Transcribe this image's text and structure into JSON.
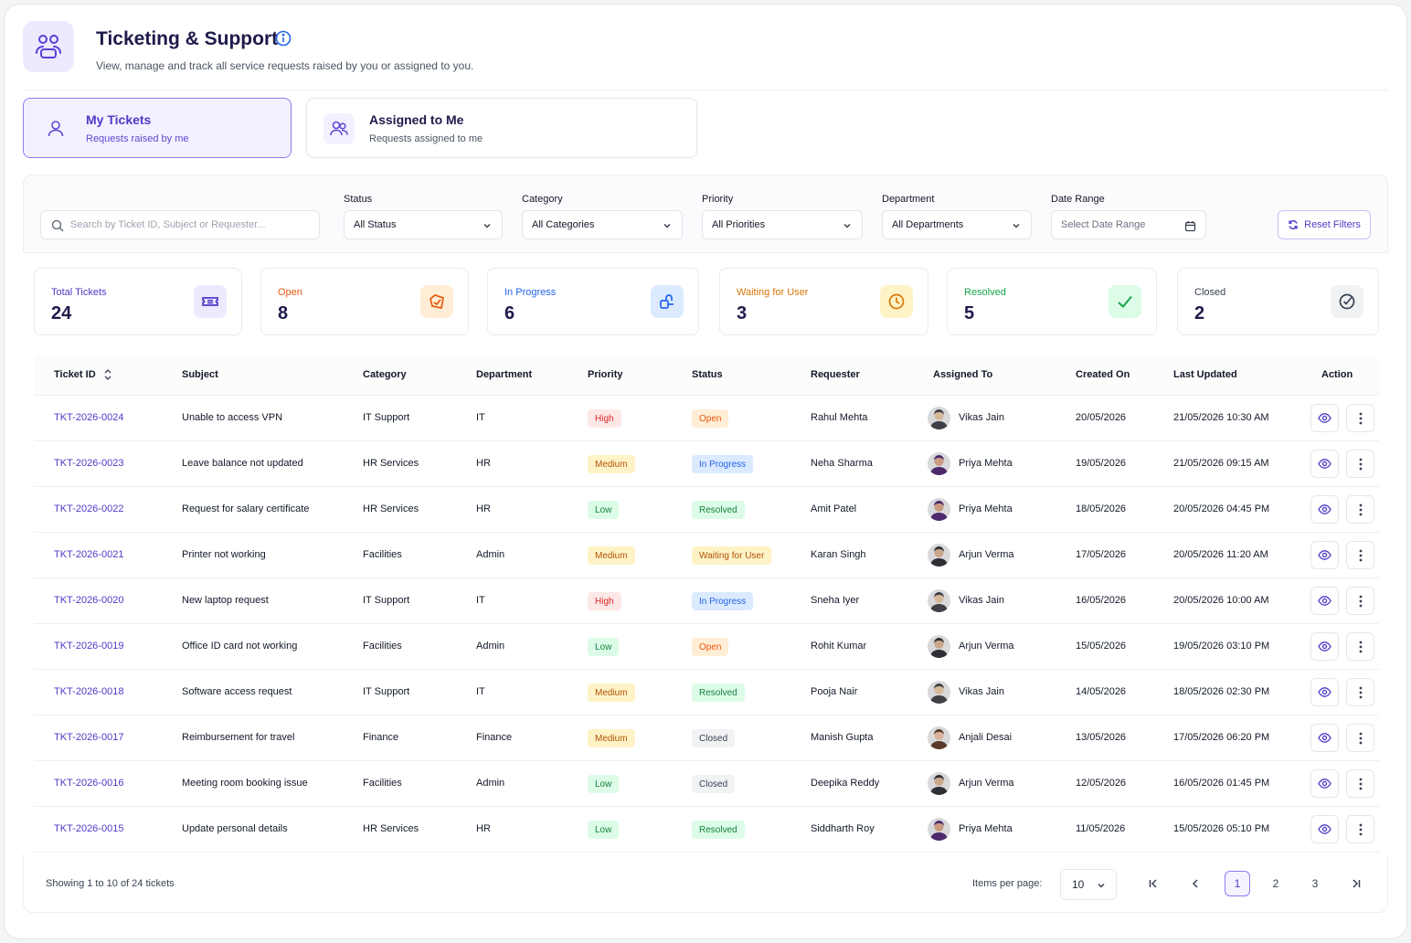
{
  "header": {
    "title": "Ticketing & Support",
    "subtitle": "View, manage and track all service requests raised by you or assigned to you."
  },
  "tabs": [
    {
      "title": "My Tickets",
      "subtitle": "Requests raised by me",
      "active": true
    },
    {
      "title": "Assigned to Me",
      "subtitle": "Requests assigned to me",
      "active": false
    }
  ],
  "filters": {
    "search_placeholder": "Search by Ticket ID, Subject or Requester...",
    "status": {
      "label": "Status",
      "value": "All Status"
    },
    "category": {
      "label": "Category",
      "value": "All Categories"
    },
    "priority": {
      "label": "Priority",
      "value": "All Priorities"
    },
    "department": {
      "label": "Department",
      "value": "All Departments"
    },
    "date_range": {
      "label": "Date Range",
      "placeholder": "Select Date Range"
    },
    "reset_label": "Reset Filters"
  },
  "stats": [
    {
      "label": "Total Tickets",
      "value": "24",
      "color": "#4c3bc7",
      "icon": "ticket-icon"
    },
    {
      "label": "Open",
      "value": "8",
      "color": "#ea580c",
      "icon": "open-ticket-icon"
    },
    {
      "label": "In Progress",
      "value": "6",
      "color": "#2563eb",
      "icon": "in-progress-icon"
    },
    {
      "label": "Waiting for User",
      "value": "3",
      "color": "#d97706",
      "icon": "clock-icon"
    },
    {
      "label": "Resolved",
      "value": "5",
      "color": "#16a34a",
      "icon": "check-icon"
    },
    {
      "label": "Closed",
      "value": "2",
      "color": "#374151",
      "icon": "check-circle-icon"
    }
  ],
  "table": {
    "columns": [
      "Ticket ID",
      "Subject",
      "Category",
      "Department",
      "Priority",
      "Status",
      "Requester",
      "Assigned To",
      "Created On",
      "Last Updated",
      "Action"
    ],
    "rows": [
      {
        "id": "TKT-2026-0024",
        "subject": "Unable to access VPN",
        "category": "IT Support",
        "department": "IT",
        "priority": "High",
        "status": "Open",
        "requester": "Rahul Mehta",
        "assignee": "Vikas Jain",
        "created": "20/05/2026",
        "updated": "21/05/2026 10:30 AM"
      },
      {
        "id": "TKT-2026-0023",
        "subject": "Leave balance not updated",
        "category": "HR Services",
        "department": "HR",
        "priority": "Medium",
        "status": "In Progress",
        "requester": "Neha Sharma",
        "assignee": "Priya Mehta",
        "created": "19/05/2026",
        "updated": "21/05/2026 09:15 AM"
      },
      {
        "id": "TKT-2026-0022",
        "subject": "Request for salary certificate",
        "category": "HR Services",
        "department": "HR",
        "priority": "Low",
        "status": "Resolved",
        "requester": "Amit Patel",
        "assignee": "Priya Mehta",
        "created": "18/05/2026",
        "updated": "20/05/2026 04:45 PM"
      },
      {
        "id": "TKT-2026-0021",
        "subject": "Printer not working",
        "category": "Facilities",
        "department": "Admin",
        "priority": "Medium",
        "status": "Waiting for User",
        "requester": "Karan Singh",
        "assignee": "Arjun Verma",
        "created": "17/05/2026",
        "updated": "20/05/2026 11:20 AM"
      },
      {
        "id": "TKT-2026-0020",
        "subject": "New laptop request",
        "category": "IT Support",
        "department": "IT",
        "priority": "High",
        "status": "In Progress",
        "requester": "Sneha Iyer",
        "assignee": "Vikas Jain",
        "created": "16/05/2026",
        "updated": "20/05/2026 10:00 AM"
      },
      {
        "id": "TKT-2026-0019",
        "subject": "Office ID card not working",
        "category": "Facilities",
        "department": "Admin",
        "priority": "Low",
        "status": "Open",
        "requester": "Rohit Kumar",
        "assignee": "Arjun Verma",
        "created": "15/05/2026",
        "updated": "19/05/2026 03:10 PM"
      },
      {
        "id": "TKT-2026-0018",
        "subject": "Software access request",
        "category": "IT Support",
        "department": "IT",
        "priority": "Medium",
        "status": "Resolved",
        "requester": "Pooja Nair",
        "assignee": "Vikas Jain",
        "created": "14/05/2026",
        "updated": "18/05/2026 02:30 PM"
      },
      {
        "id": "TKT-2026-0017",
        "subject": "Reimbursement for travel",
        "category": "Finance",
        "department": "Finance",
        "priority": "Medium",
        "status": "Closed",
        "requester": "Manish Gupta",
        "assignee": "Anjali Desai",
        "created": "13/05/2026",
        "updated": "17/05/2026 06:20 PM"
      },
      {
        "id": "TKT-2026-0016",
        "subject": "Meeting room booking issue",
        "category": "Facilities",
        "department": "Admin",
        "priority": "Low",
        "status": "Closed",
        "requester": "Deepika Reddy",
        "assignee": "Arjun Verma",
        "created": "12/05/2026",
        "updated": "16/05/2026 01:45 PM"
      },
      {
        "id": "TKT-2026-0015",
        "subject": "Update personal details",
        "category": "HR Services",
        "department": "HR",
        "priority": "Low",
        "status": "Resolved",
        "requester": "Siddharth Roy",
        "assignee": "Priya Mehta",
        "created": "11/05/2026",
        "updated": "15/05/2026 05:10 PM"
      }
    ]
  },
  "badge_colors": {
    "High": {
      "bg": "#fde8e8",
      "fg": "#dc2626"
    },
    "Medium": {
      "bg": "#fef3c7",
      "fg": "#b45309"
    },
    "Low": {
      "bg": "#dcfce7",
      "fg": "#15803d"
    },
    "Open": {
      "bg": "#ffedd5",
      "fg": "#ea580c"
    },
    "In Progress": {
      "bg": "#dbeafe",
      "fg": "#2563eb"
    },
    "Resolved": {
      "bg": "#dcfce7",
      "fg": "#15803d"
    },
    "Waiting for User": {
      "bg": "#fef3c7",
      "fg": "#b45309"
    },
    "Closed": {
      "bg": "#f1f2f4",
      "fg": "#374151"
    }
  },
  "footer": {
    "showing": "Showing 1 to 10 of 24 tickets",
    "items_per_page_label": "Items per page:",
    "items_per_page": "10",
    "pages": [
      "1",
      "2",
      "3"
    ],
    "current_page": "1"
  }
}
